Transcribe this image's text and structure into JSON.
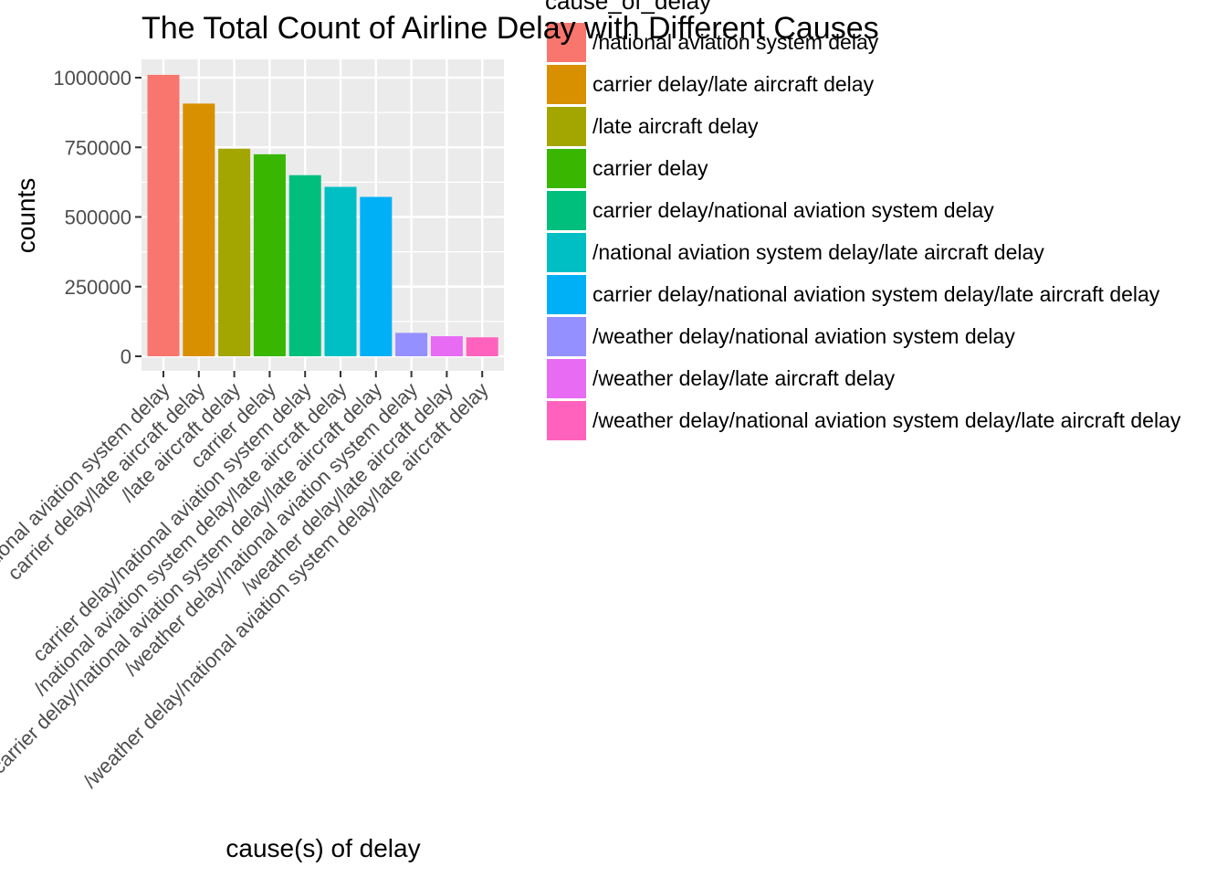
{
  "chart_data": {
    "type": "bar",
    "title": "The Total Count of Airline Delay with Different Causes",
    "xlabel": "cause(s) of delay",
    "ylabel": "counts",
    "ylim": [
      0,
      1000000
    ],
    "yticks": [
      0,
      250000,
      500000,
      750000,
      1000000
    ],
    "ytick_labels": [
      "0",
      "250000",
      "500000",
      "750000",
      "1000000"
    ],
    "legend_title": "cause_of_delay",
    "legend_position": "right",
    "grid": true,
    "categories": [
      "/national aviation system delay",
      "carrier delay/late aircraft delay",
      "/late aircraft delay",
      "carrier delay",
      "carrier delay/national aviation system delay",
      "/national aviation system delay/late aircraft delay",
      "carrier delay/national aviation system delay/late aircraft delay",
      "/weather delay/national aviation system delay",
      "/weather delay/late aircraft delay",
      "/weather delay/national aviation system delay/late aircraft delay"
    ],
    "values": [
      1010000,
      907000,
      745000,
      725000,
      650000,
      608000,
      572000,
      84000,
      72000,
      68000
    ],
    "colors": [
      "#F8766D",
      "#D89000",
      "#A3A500",
      "#39B600",
      "#00BF7D",
      "#00BFC4",
      "#00B0F6",
      "#9590FF",
      "#E76BF3",
      "#FF62BC"
    ]
  }
}
